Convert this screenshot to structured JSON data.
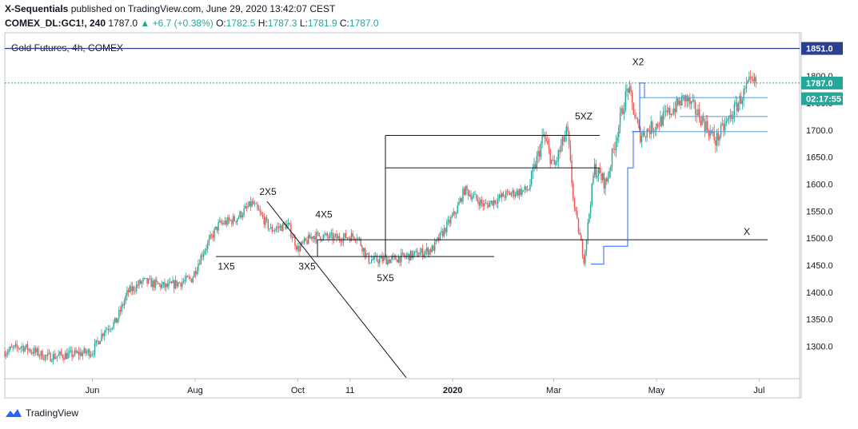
{
  "header": {
    "author": "X-Sequentials",
    "published_text": "published on TradingView.com, June 29, 2020 13:42:07 CEST",
    "symbol": "COMEX_DL:GC1!, 240",
    "last": "1787.0",
    "change": "+6.7 (+0.38%)",
    "o_label": "O:",
    "o_value": "1782.5",
    "h_label": "H:",
    "h_value": "1787.3",
    "l_label": "L:",
    "l_value": "1781.9",
    "c_label": "C:",
    "c_value": "1787.0"
  },
  "legend_title": "Gold Futures, 4h, COMEX",
  "price_badges": {
    "level_1851": "1851.0",
    "last": "1787.0",
    "countdown": "02:17:55"
  },
  "annotations": [
    "1X5",
    "2X5",
    "3X5",
    "4X5",
    "5X5",
    "5XZ",
    "X2",
    "X"
  ],
  "footer_brand": "TradingView",
  "colors": {
    "up": "#26a69a",
    "down": "#ef5350",
    "level_line": "#2a3f8f",
    "step_line": "#2962ff",
    "drawing": "#131722",
    "pale_line": "#5b9bd5"
  },
  "chart_data": {
    "type": "candlestick",
    "title": "Gold Futures, 4h, COMEX",
    "x_ticks": [
      "Jun",
      "Aug",
      "Oct",
      "11",
      "2020",
      "Mar",
      "May",
      "Jul"
    ],
    "y_ticks": [
      1300,
      1350,
      1400,
      1450,
      1500,
      1550,
      1600,
      1650,
      1700,
      1750,
      1800
    ],
    "y_range": [
      1240,
      1880
    ],
    "x_range": [
      "2019-04-10",
      "2020-07-25"
    ],
    "last_price": 1787.0,
    "grid": false,
    "approx_path": [
      {
        "date": "2019-04-10",
        "price": 1290
      },
      {
        "date": "2019-04-20",
        "price": 1300
      },
      {
        "date": "2019-05-05",
        "price": 1280
      },
      {
        "date": "2019-05-20",
        "price": 1285
      },
      {
        "date": "2019-06-01",
        "price": 1290
      },
      {
        "date": "2019-06-08",
        "price": 1330
      },
      {
        "date": "2019-06-15",
        "price": 1345
      },
      {
        "date": "2019-06-22",
        "price": 1400
      },
      {
        "date": "2019-07-01",
        "price": 1420
      },
      {
        "date": "2019-07-15",
        "price": 1410
      },
      {
        "date": "2019-07-30",
        "price": 1425
      },
      {
        "date": "2019-08-05",
        "price": 1470
      },
      {
        "date": "2019-08-15",
        "price": 1525
      },
      {
        "date": "2019-08-25",
        "price": 1535
      },
      {
        "date": "2019-09-04",
        "price": 1565
      },
      {
        "date": "2019-09-15",
        "price": 1515
      },
      {
        "date": "2019-09-25",
        "price": 1525
      },
      {
        "date": "2019-10-01",
        "price": 1480
      },
      {
        "date": "2019-10-10",
        "price": 1505
      },
      {
        "date": "2019-10-25",
        "price": 1500
      },
      {
        "date": "2019-11-05",
        "price": 1505
      },
      {
        "date": "2019-11-12",
        "price": 1460
      },
      {
        "date": "2019-11-25",
        "price": 1460
      },
      {
        "date": "2019-12-10",
        "price": 1470
      },
      {
        "date": "2019-12-20",
        "price": 1480
      },
      {
        "date": "2020-01-03",
        "price": 1550
      },
      {
        "date": "2020-01-08",
        "price": 1590
      },
      {
        "date": "2020-01-20",
        "price": 1560
      },
      {
        "date": "2020-02-01",
        "price": 1580
      },
      {
        "date": "2020-02-15",
        "price": 1590
      },
      {
        "date": "2020-02-24",
        "price": 1690
      },
      {
        "date": "2020-03-01",
        "price": 1630
      },
      {
        "date": "2020-03-09",
        "price": 1700
      },
      {
        "date": "2020-03-13",
        "price": 1560
      },
      {
        "date": "2020-03-19",
        "price": 1460
      },
      {
        "date": "2020-03-25",
        "price": 1630
      },
      {
        "date": "2020-04-01",
        "price": 1600
      },
      {
        "date": "2020-04-08",
        "price": 1700
      },
      {
        "date": "2020-04-14",
        "price": 1780
      },
      {
        "date": "2020-04-21",
        "price": 1690
      },
      {
        "date": "2020-05-01",
        "price": 1710
      },
      {
        "date": "2020-05-18",
        "price": 1760
      },
      {
        "date": "2020-05-28",
        "price": 1720
      },
      {
        "date": "2020-06-05",
        "price": 1680
      },
      {
        "date": "2020-06-15",
        "price": 1730
      },
      {
        "date": "2020-06-25",
        "price": 1785
      },
      {
        "date": "2020-06-29",
        "price": 1787
      }
    ],
    "horizontal_levels": [
      1851.0,
      1787.0,
      1760,
      1725,
      1697,
      1690,
      1630,
      1497,
      1466
    ]
  }
}
